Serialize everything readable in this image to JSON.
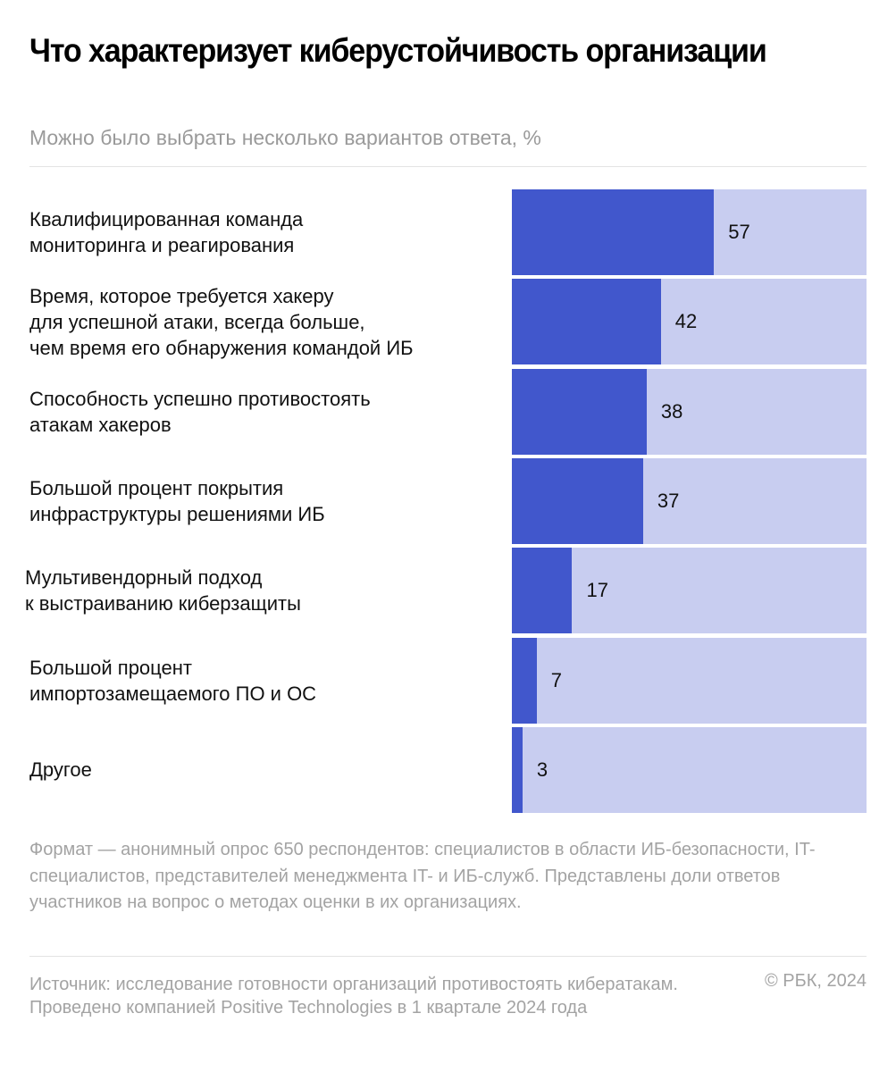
{
  "header": {
    "title": "Что характеризует киберустойчивость организации",
    "subtitle": "Можно было выбрать несколько вариантов ответа, %"
  },
  "chart_data": {
    "type": "bar",
    "orientation": "horizontal",
    "title": "Что характеризует киберустойчивость организации",
    "subtitle": "Можно было выбрать несколько вариантов ответа, %",
    "xlim": [
      0,
      100
    ],
    "unit": "%",
    "categories": [
      [
        "Квалифицированная команда",
        "мониторинга и реагирования"
      ],
      [
        "Время, которое требуется хакеру",
        "для успешной атаки, всегда больше,",
        "чем время его обнаружения командой ИБ"
      ],
      [
        "Способность успешно противостоять",
        "атакам хакеров"
      ],
      [
        "Большой процент покрытия",
        "инфраструктуры решениями ИБ"
      ],
      [
        "Мультивендорный подход",
        "к выстраиванию киберзащиты"
      ],
      [
        "Большой процент",
        "импортозамещаемого ПО и ОС"
      ],
      [
        "Другое"
      ]
    ],
    "values": [
      57,
      42,
      38,
      37,
      17,
      7,
      3
    ],
    "value_labels": [
      "57",
      "42",
      "38",
      "37",
      "17",
      "7",
      "3"
    ],
    "colors": {
      "fill": "#4157cc",
      "track": "#c8cdf0"
    },
    "grid": false,
    "legend": "none"
  },
  "footer": {
    "note": "Формат — анонимный опрос 650 респондентов: специалистов в области ИБ-безопасности, IT-специалистов, представителей менеджмента IT- и ИБ-служб. Представлены доли ответов участников на вопрос о методах оценки в их организациях.",
    "source": "Источник: исследование готовности организаций противостоять кибератакам. Проведено компанией Positive Technologies в 1 квартале 2024 года",
    "copyright": "© РБК, 2024"
  }
}
